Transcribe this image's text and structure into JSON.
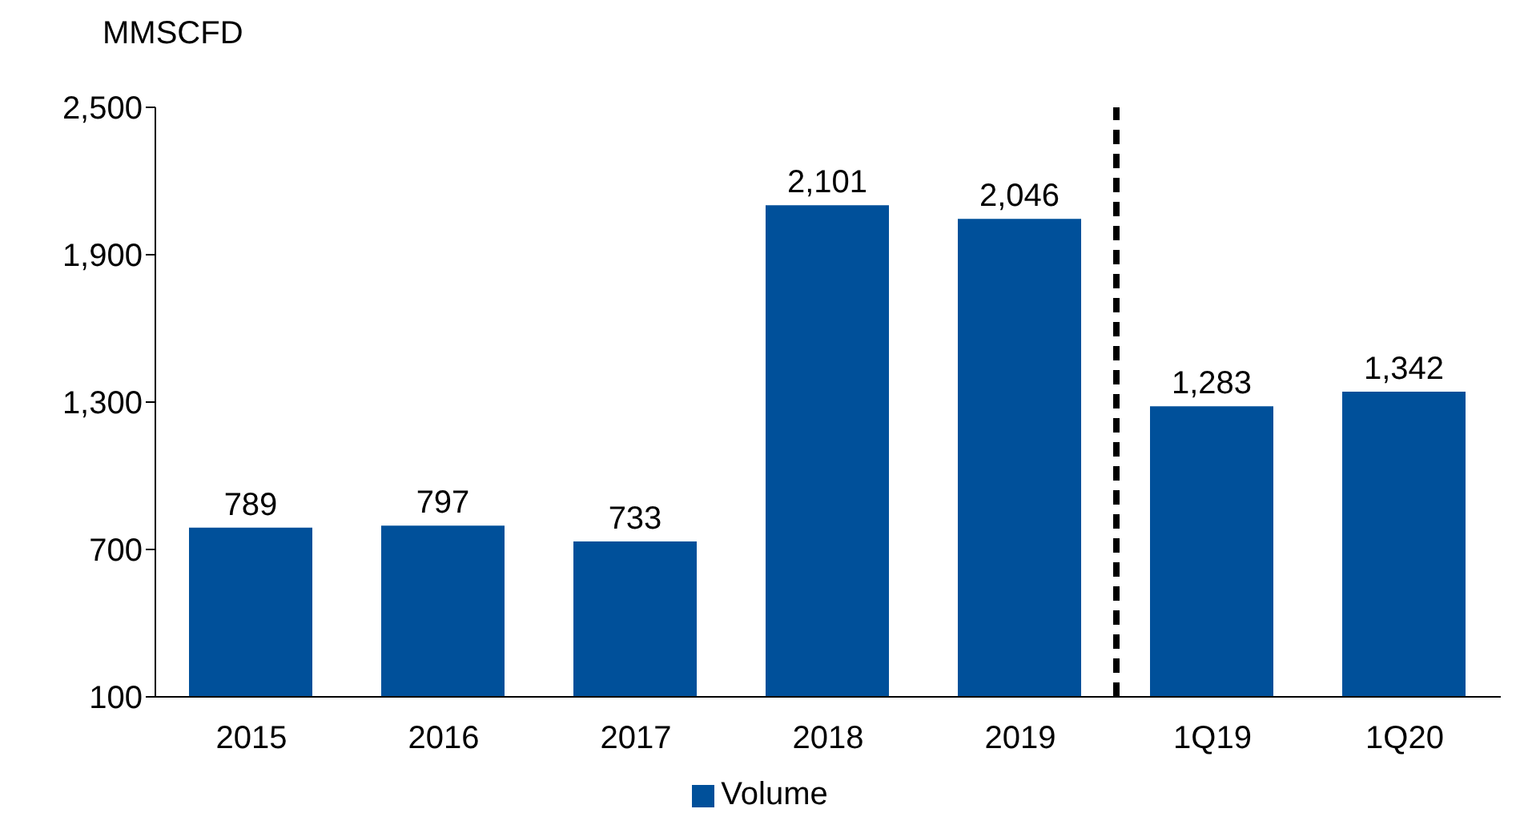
{
  "chart_data": {
    "type": "bar",
    "ylabel": "MMSCFD",
    "categories": [
      "2015",
      "2016",
      "2017",
      "2018",
      "2019",
      "1Q19",
      "1Q20"
    ],
    "series": [
      {
        "name": "Volume",
        "color": "#00509a",
        "values": [
          789,
          797,
          733,
          2101,
          2046,
          1283,
          1342
        ],
        "value_labels": [
          "789",
          "797",
          "733",
          "2,101",
          "2,046",
          "1,283",
          "1,342"
        ]
      }
    ],
    "ylim": [
      100,
      2500
    ],
    "yticks": [
      {
        "value": 100,
        "label": "100"
      },
      {
        "value": 700,
        "label": "700"
      },
      {
        "value": 1300,
        "label": "1,300"
      },
      {
        "value": 1900,
        "label": "1,900"
      },
      {
        "value": 2500,
        "label": "2,500"
      }
    ],
    "legend": "bottom",
    "grid": false
  }
}
